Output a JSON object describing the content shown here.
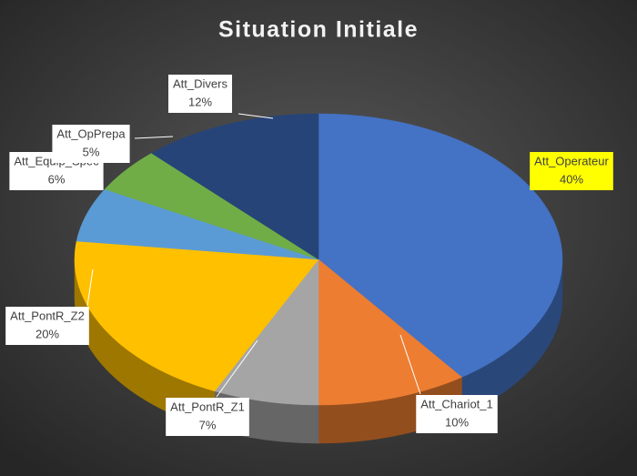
{
  "chart_data": {
    "type": "pie3d",
    "title": "Situation Initiale",
    "categories": [
      "Att_Operateur",
      "Att_Chariot_1",
      "Att_PontR_Z1",
      "Att_PontR_Z2",
      "Att_Equip_Spec",
      "Att_OpPrepa",
      "Att_Divers"
    ],
    "values": [
      40,
      10,
      7,
      20,
      6,
      5,
      12
    ],
    "value_labels": [
      "40%",
      "10%",
      "7%",
      "20%",
      "6%",
      "5%",
      "12%"
    ],
    "colors": [
      "#4472c4",
      "#ed7d31",
      "#a5a5a5",
      "#ffc000",
      "#5b9bd5",
      "#70ad47",
      "#264478"
    ],
    "label_colors": [
      "#ffff00",
      "#ffffff",
      "#ffffff",
      "#ffffff",
      "#ffffff",
      "#ffffff",
      "#ffffff"
    ]
  }
}
